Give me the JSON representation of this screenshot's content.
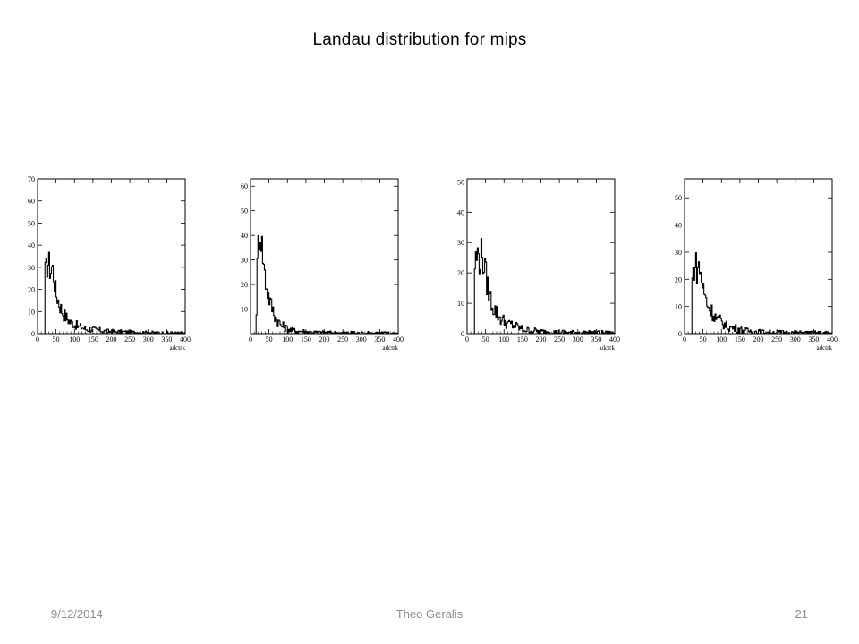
{
  "slide": {
    "title": "Landau distribution for mips",
    "footer": {
      "date": "9/12/2014",
      "author": "Theo Geralis",
      "page": "21"
    }
  },
  "chart_data": [
    {
      "type": "histogram",
      "xlabel": "adctrk",
      "xlim": [
        0,
        400
      ],
      "ylim": [
        0,
        70
      ],
      "xticks": [
        0,
        50,
        100,
        150,
        200,
        250,
        300,
        350,
        400
      ],
      "yticks": [
        0,
        10,
        20,
        30,
        40,
        50,
        60,
        70
      ],
      "bin_width": 2.5,
      "x": [
        20,
        25,
        30,
        35,
        40,
        45,
        50,
        55,
        60,
        65,
        70,
        75,
        80,
        85,
        90,
        95,
        100,
        105,
        110,
        115,
        120,
        130,
        140,
        150,
        160,
        170,
        180,
        190,
        200,
        220,
        240,
        260,
        280,
        300,
        320,
        340,
        360,
        380,
        400
      ],
      "values": [
        27,
        30,
        33,
        28,
        31,
        25,
        18,
        16,
        13,
        11,
        9,
        8,
        7,
        6,
        5,
        5,
        4,
        4,
        3,
        3,
        3,
        2,
        2,
        2,
        1.5,
        1.5,
        1.2,
        1,
        1,
        0.8,
        0.7,
        0.6,
        0.5,
        0.5,
        0.4,
        0.3,
        0.3,
        0.2,
        0.2
      ]
    },
    {
      "type": "histogram",
      "xlabel": "adctrk",
      "xlim": [
        0,
        400
      ],
      "ylim": [
        0,
        63
      ],
      "xticks": [
        0,
        50,
        100,
        150,
        200,
        250,
        300,
        350,
        400
      ],
      "yticks": [
        10,
        20,
        30,
        40,
        50,
        60
      ],
      "bin_width": 2.5,
      "x": [
        15,
        20,
        25,
        30,
        35,
        40,
        45,
        50,
        55,
        60,
        65,
        70,
        75,
        80,
        85,
        90,
        95,
        100,
        110,
        120,
        130,
        140,
        150,
        160,
        170,
        180,
        190,
        200,
        220,
        240,
        260,
        280,
        300,
        320,
        340,
        360,
        380,
        400
      ],
      "values": [
        2,
        35,
        42,
        38,
        30,
        22,
        18,
        15,
        12,
        10,
        8,
        6,
        5,
        4,
        3,
        3,
        2.5,
        2,
        1.5,
        1.2,
        1,
        1,
        0.8,
        0.7,
        0.6,
        0.5,
        0.5,
        0.5,
        0.4,
        0.3,
        0.3,
        0.3,
        0.2,
        0.2,
        0.2,
        0.2,
        0.1,
        0.1
      ]
    },
    {
      "type": "histogram",
      "xlabel": "adctrk",
      "xlim": [
        0,
        400
      ],
      "ylim": [
        0,
        51
      ],
      "xticks": [
        0,
        50,
        100,
        150,
        200,
        250,
        300,
        350,
        400
      ],
      "yticks": [
        0,
        10,
        20,
        30,
        40,
        50
      ],
      "bin_width": 2.5,
      "x": [
        20,
        25,
        30,
        35,
        40,
        45,
        50,
        55,
        60,
        65,
        70,
        75,
        80,
        85,
        90,
        95,
        100,
        105,
        110,
        120,
        130,
        140,
        150,
        160,
        170,
        180,
        190,
        200,
        220,
        240,
        260,
        280,
        300,
        320,
        340,
        360,
        380,
        400
      ],
      "values": [
        22,
        25,
        26,
        24,
        27,
        23,
        20,
        16,
        13,
        11,
        9,
        8,
        7,
        6,
        5,
        5,
        4,
        4,
        3,
        3,
        2.5,
        2,
        1.5,
        1.2,
        1,
        1,
        0.8,
        0.7,
        0.6,
        0.5,
        0.5,
        0.4,
        0.4,
        0.3,
        0.3,
        0.3,
        0.2,
        0.2
      ]
    },
    {
      "type": "histogram",
      "xlabel": "adctrk",
      "xlim": [
        0,
        400
      ],
      "ylim": [
        0,
        57
      ],
      "xticks": [
        0,
        50,
        100,
        150,
        200,
        250,
        300,
        350,
        400
      ],
      "yticks": [
        0,
        10,
        20,
        30,
        40,
        50
      ],
      "bin_width": 2.5,
      "x": [
        20,
        25,
        30,
        35,
        40,
        45,
        50,
        55,
        60,
        65,
        70,
        75,
        80,
        85,
        90,
        95,
        100,
        105,
        110,
        120,
        130,
        140,
        150,
        160,
        170,
        180,
        190,
        200,
        220,
        240,
        260,
        280,
        300,
        320,
        340,
        360,
        380,
        400
      ],
      "values": [
        18,
        24,
        26,
        23,
        25,
        21,
        17,
        14,
        12,
        10,
        9,
        8,
        7,
        6,
        5,
        5,
        4,
        4,
        3,
        2.5,
        2,
        2,
        1.5,
        1.2,
        1,
        1,
        0.8,
        0.7,
        0.6,
        0.5,
        0.5,
        0.4,
        0.4,
        0.3,
        0.3,
        0.3,
        0.2,
        0.2
      ]
    }
  ]
}
